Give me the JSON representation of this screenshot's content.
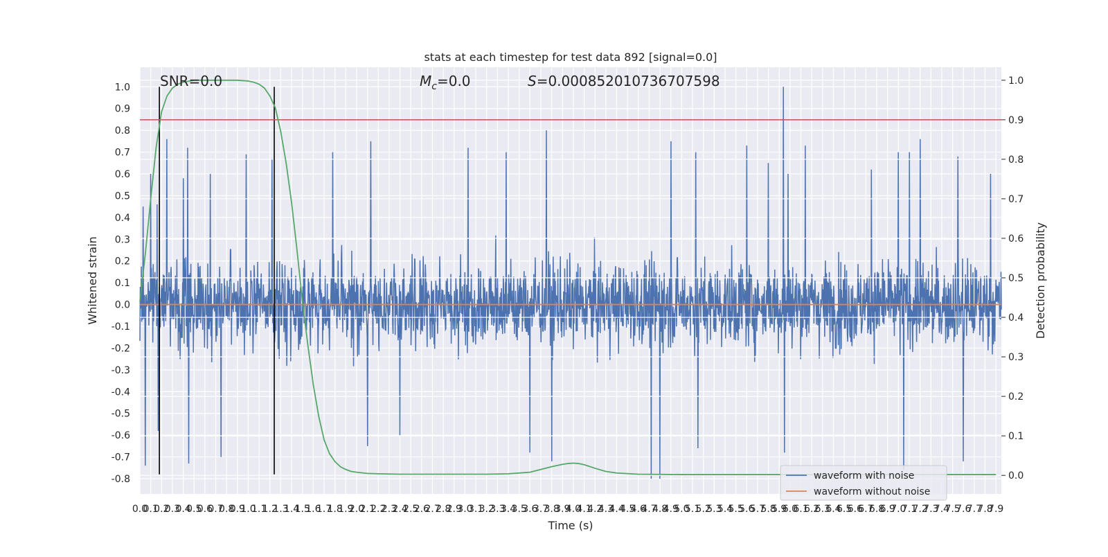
{
  "chart_data": {
    "type": "line",
    "title": "stats at each timestep for test data 892 [signal=0.0]",
    "xlabel": "Time (s)",
    "ylabel": "Whitened strain",
    "y2label": "Detection probability",
    "xlim": [
      0.0,
      7.95
    ],
    "ylim": [
      -0.87,
      1.09
    ],
    "y2lim": [
      -0.047,
      1.033
    ],
    "x_ticks": [
      0.0,
      0.1,
      0.2,
      0.3,
      0.4,
      0.5,
      0.6,
      0.7,
      0.8,
      0.9,
      1.0,
      1.1,
      1.2,
      1.3,
      1.4,
      1.5,
      1.6,
      1.7,
      1.8,
      1.9,
      2.0,
      2.1,
      2.2,
      2.3,
      2.4,
      2.5,
      2.6,
      2.7,
      2.8,
      2.9,
      3.0,
      3.1,
      3.2,
      3.3,
      3.4,
      3.5,
      3.6,
      3.7,
      3.8,
      3.9,
      4.0,
      4.1,
      4.2,
      4.3,
      4.4,
      4.5,
      4.6,
      4.7,
      4.8,
      4.9,
      5.0,
      5.1,
      5.2,
      5.3,
      5.4,
      5.5,
      5.6,
      5.7,
      5.8,
      5.9,
      6.0,
      6.1,
      6.2,
      6.3,
      6.4,
      6.5,
      6.6,
      6.7,
      6.8,
      6.9,
      7.0,
      7.1,
      7.2,
      7.3,
      7.4,
      7.5,
      7.6,
      7.7,
      7.8,
      7.9
    ],
    "y_ticks": [
      1.0,
      0.9,
      0.8,
      0.7,
      0.6,
      0.5,
      0.4,
      0.3,
      0.2,
      0.1,
      0.0,
      -0.1,
      -0.2,
      -0.3,
      -0.4,
      -0.5,
      -0.6,
      -0.7,
      -0.8
    ],
    "y2_ticks": [
      1.0,
      0.9,
      0.8,
      0.7,
      0.6,
      0.5,
      0.4,
      0.3,
      0.2,
      0.1,
      0.0
    ],
    "grid": true,
    "legend_position": "bottom-right",
    "annotations": {
      "snr": "SNR=0.0",
      "mc_sym": "M",
      "mc_sub": "c",
      "mc_val": "=0.0",
      "s_sym": "S",
      "s_val": "=0.000852010736707598"
    },
    "vertical_markers_x": [
      0.18,
      1.24
    ],
    "threshold_y2": 0.9,
    "series": [
      {
        "name": "waveform with noise",
        "color": "#4c72b0",
        "axis": "left",
        "peaks": [
          [
            0.03,
            0.45
          ],
          [
            0.05,
            -0.74
          ],
          [
            0.1,
            0.6
          ],
          [
            0.16,
            0.46
          ],
          [
            0.17,
            -0.58
          ],
          [
            0.25,
            0.76
          ],
          [
            0.4,
            0.58
          ],
          [
            0.44,
            0.72
          ],
          [
            0.45,
            -0.73
          ],
          [
            0.65,
            0.6
          ],
          [
            0.75,
            -0.7
          ],
          [
            0.98,
            0.69
          ],
          [
            1.22,
            0.67
          ],
          [
            1.78,
            0.7
          ],
          [
            2.13,
            0.75
          ],
          [
            2.1,
            -0.65
          ],
          [
            2.4,
            -0.6
          ],
          [
            3.03,
            0.72
          ],
          [
            3.38,
            0.7
          ],
          [
            3.6,
            -0.68
          ],
          [
            3.75,
            0.8
          ],
          [
            3.8,
            -0.72
          ],
          [
            4.72,
            -0.8
          ],
          [
            4.8,
            -0.8
          ],
          [
            4.9,
            0.75
          ],
          [
            5.13,
            0.7
          ],
          [
            5.15,
            -0.66
          ],
          [
            5.6,
            0.73
          ],
          [
            5.8,
            0.65
          ],
          [
            5.94,
            1.0
          ],
          [
            5.98,
            0.6
          ],
          [
            5.95,
            -0.68
          ],
          [
            6.14,
            0.73
          ],
          [
            6.75,
            0.62
          ],
          [
            7.0,
            0.7
          ],
          [
            7.1,
            0.7
          ],
          [
            7.05,
            -0.76
          ],
          [
            7.2,
            0.76
          ],
          [
            7.55,
            0.68
          ],
          [
            7.6,
            -0.72
          ],
          [
            7.85,
            0.6
          ]
        ]
      },
      {
        "name": "waveform without noise",
        "color": "#dd8452",
        "axis": "left",
        "x": [
          0.0,
          7.95
        ],
        "y": [
          0.0,
          0.0
        ]
      },
      {
        "name": "",
        "color": "#55a868",
        "axis": "right",
        "x": [
          0.0,
          0.05,
          0.1,
          0.15,
          0.2,
          0.25,
          0.3,
          0.35,
          0.4,
          0.5,
          0.6,
          0.7,
          0.8,
          0.9,
          1.0,
          1.05,
          1.1,
          1.15,
          1.2,
          1.25,
          1.3,
          1.35,
          1.4,
          1.45,
          1.5,
          1.55,
          1.6,
          1.65,
          1.7,
          1.75,
          1.8,
          1.85,
          1.9,
          1.95,
          2.0,
          2.1,
          2.2,
          2.4,
          2.6,
          2.8,
          3.0,
          3.2,
          3.4,
          3.6,
          3.7,
          3.8,
          3.9,
          3.95,
          4.0,
          4.05,
          4.1,
          4.2,
          4.3,
          4.4,
          4.6,
          5.0,
          6.0,
          7.0,
          7.9
        ],
        "y": [
          0.44,
          0.56,
          0.7,
          0.83,
          0.92,
          0.96,
          0.98,
          0.99,
          0.995,
          1.0,
          1.0,
          1.0,
          1.0,
          1.0,
          0.998,
          0.995,
          0.99,
          0.98,
          0.96,
          0.93,
          0.87,
          0.79,
          0.69,
          0.57,
          0.44,
          0.33,
          0.23,
          0.15,
          0.09,
          0.055,
          0.035,
          0.022,
          0.015,
          0.01,
          0.008,
          0.005,
          0.004,
          0.003,
          0.003,
          0.003,
          0.003,
          0.003,
          0.004,
          0.008,
          0.015,
          0.022,
          0.028,
          0.03,
          0.031,
          0.03,
          0.027,
          0.018,
          0.01,
          0.006,
          0.003,
          0.002,
          0.002,
          0.002,
          0.002
        ]
      }
    ]
  }
}
